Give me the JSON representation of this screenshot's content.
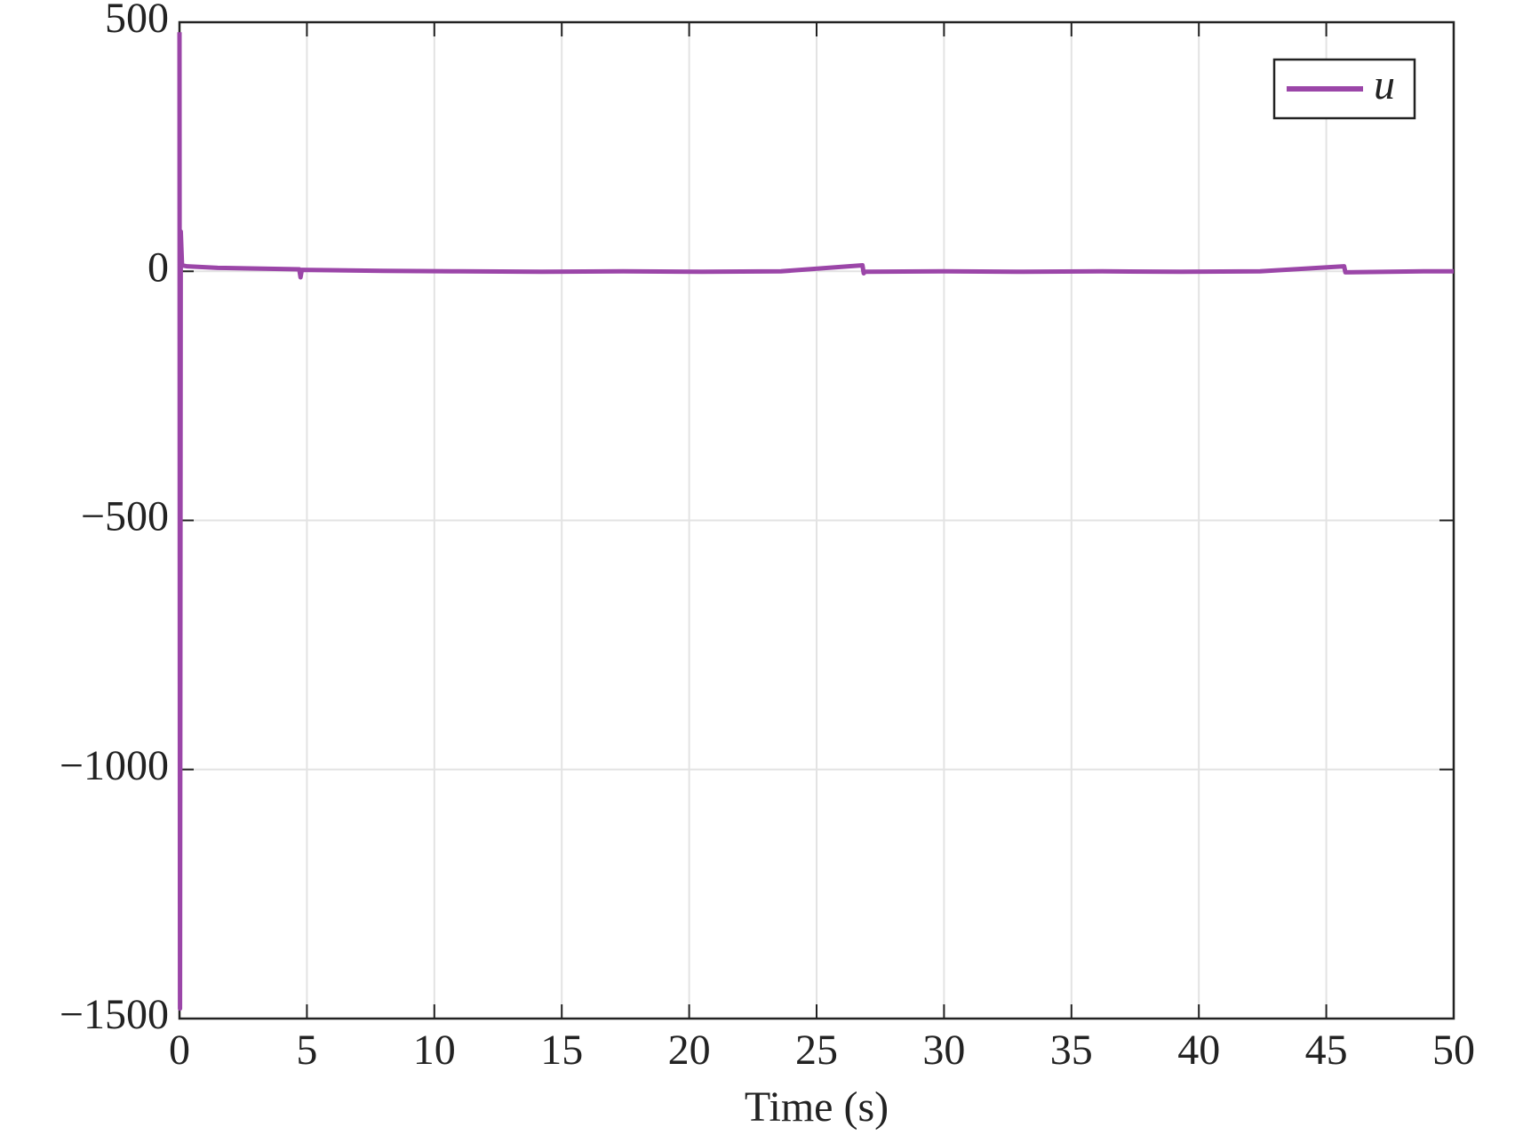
{
  "chart_data": {
    "type": "line",
    "x_label": "Time (s)",
    "x": [
      0,
      0.02,
      0.05,
      0.1,
      0.3,
      1.5,
      4.7,
      4.75,
      4.8,
      8,
      11,
      14.2,
      17.4,
      20.5,
      23.6,
      26.8,
      26.85,
      26.9,
      30,
      33.1,
      36.2,
      39.3,
      42.4,
      45.7,
      45.75,
      48.8,
      50
    ],
    "series": [
      {
        "name": "u",
        "color": "#9b46a8",
        "values": [
          480,
          -1480,
          80,
          12,
          10,
          7,
          4,
          -12,
          3,
          1,
          0,
          -1,
          0,
          -1,
          0,
          12,
          -4,
          -1,
          0,
          -1,
          0,
          -1,
          0,
          10,
          -2,
          0,
          0
        ]
      }
    ],
    "xlim": [
      0,
      50
    ],
    "xticks": [
      0,
      5,
      10,
      15,
      20,
      25,
      30,
      35,
      40,
      45,
      50
    ],
    "ylim": [
      -1500,
      500
    ],
    "yticks": [
      {
        "value": -1500,
        "label": "−1500"
      },
      {
        "value": -1000,
        "label": "−1000"
      },
      {
        "value": -500,
        "label": "−500"
      },
      0,
      500
    ],
    "grid": true,
    "legend": "upper right"
  }
}
